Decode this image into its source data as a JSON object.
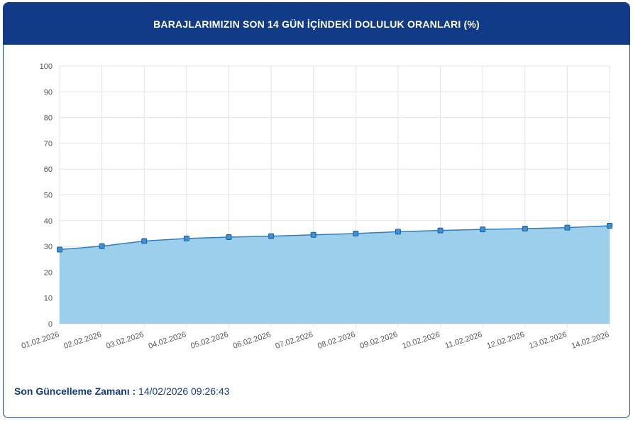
{
  "header": {
    "title": "BARAJLARIMIZIN SON 14 GÜN İÇİNDEKİ DOLULUK ORANLARI (%)"
  },
  "footer": {
    "label": "Son Güncelleme Zamanı :",
    "value": "14/02/2026 09:26:43"
  },
  "colors": {
    "header_bg": "#113b86",
    "line": "#2f7fc0",
    "area": "#9ccfeb",
    "marker": "#3d8fd6",
    "grid": "#e3e3e3"
  },
  "chart_data": {
    "type": "area",
    "x": [
      "01.02.2026",
      "02.02.2026",
      "03.02.2026",
      "04.02.2026",
      "05.02.2026",
      "06.02.2026",
      "07.02.2026",
      "08.02.2026",
      "09.02.2026",
      "10.02.2026",
      "11.02.2026",
      "12.02.2026",
      "13.02.2026",
      "14.02.2026"
    ],
    "series": [
      {
        "values": [
          28.8,
          30.1,
          32.1,
          33.1,
          33.6,
          34.0,
          34.5,
          35.0,
          35.7,
          36.2,
          36.6,
          36.9,
          37.3,
          38.0
        ]
      }
    ],
    "ylim": [
      0,
      100
    ],
    "yticks": [
      0,
      10,
      20,
      30,
      40,
      50,
      60,
      70,
      80,
      90,
      100
    ],
    "grid": true,
    "markers": "square"
  }
}
